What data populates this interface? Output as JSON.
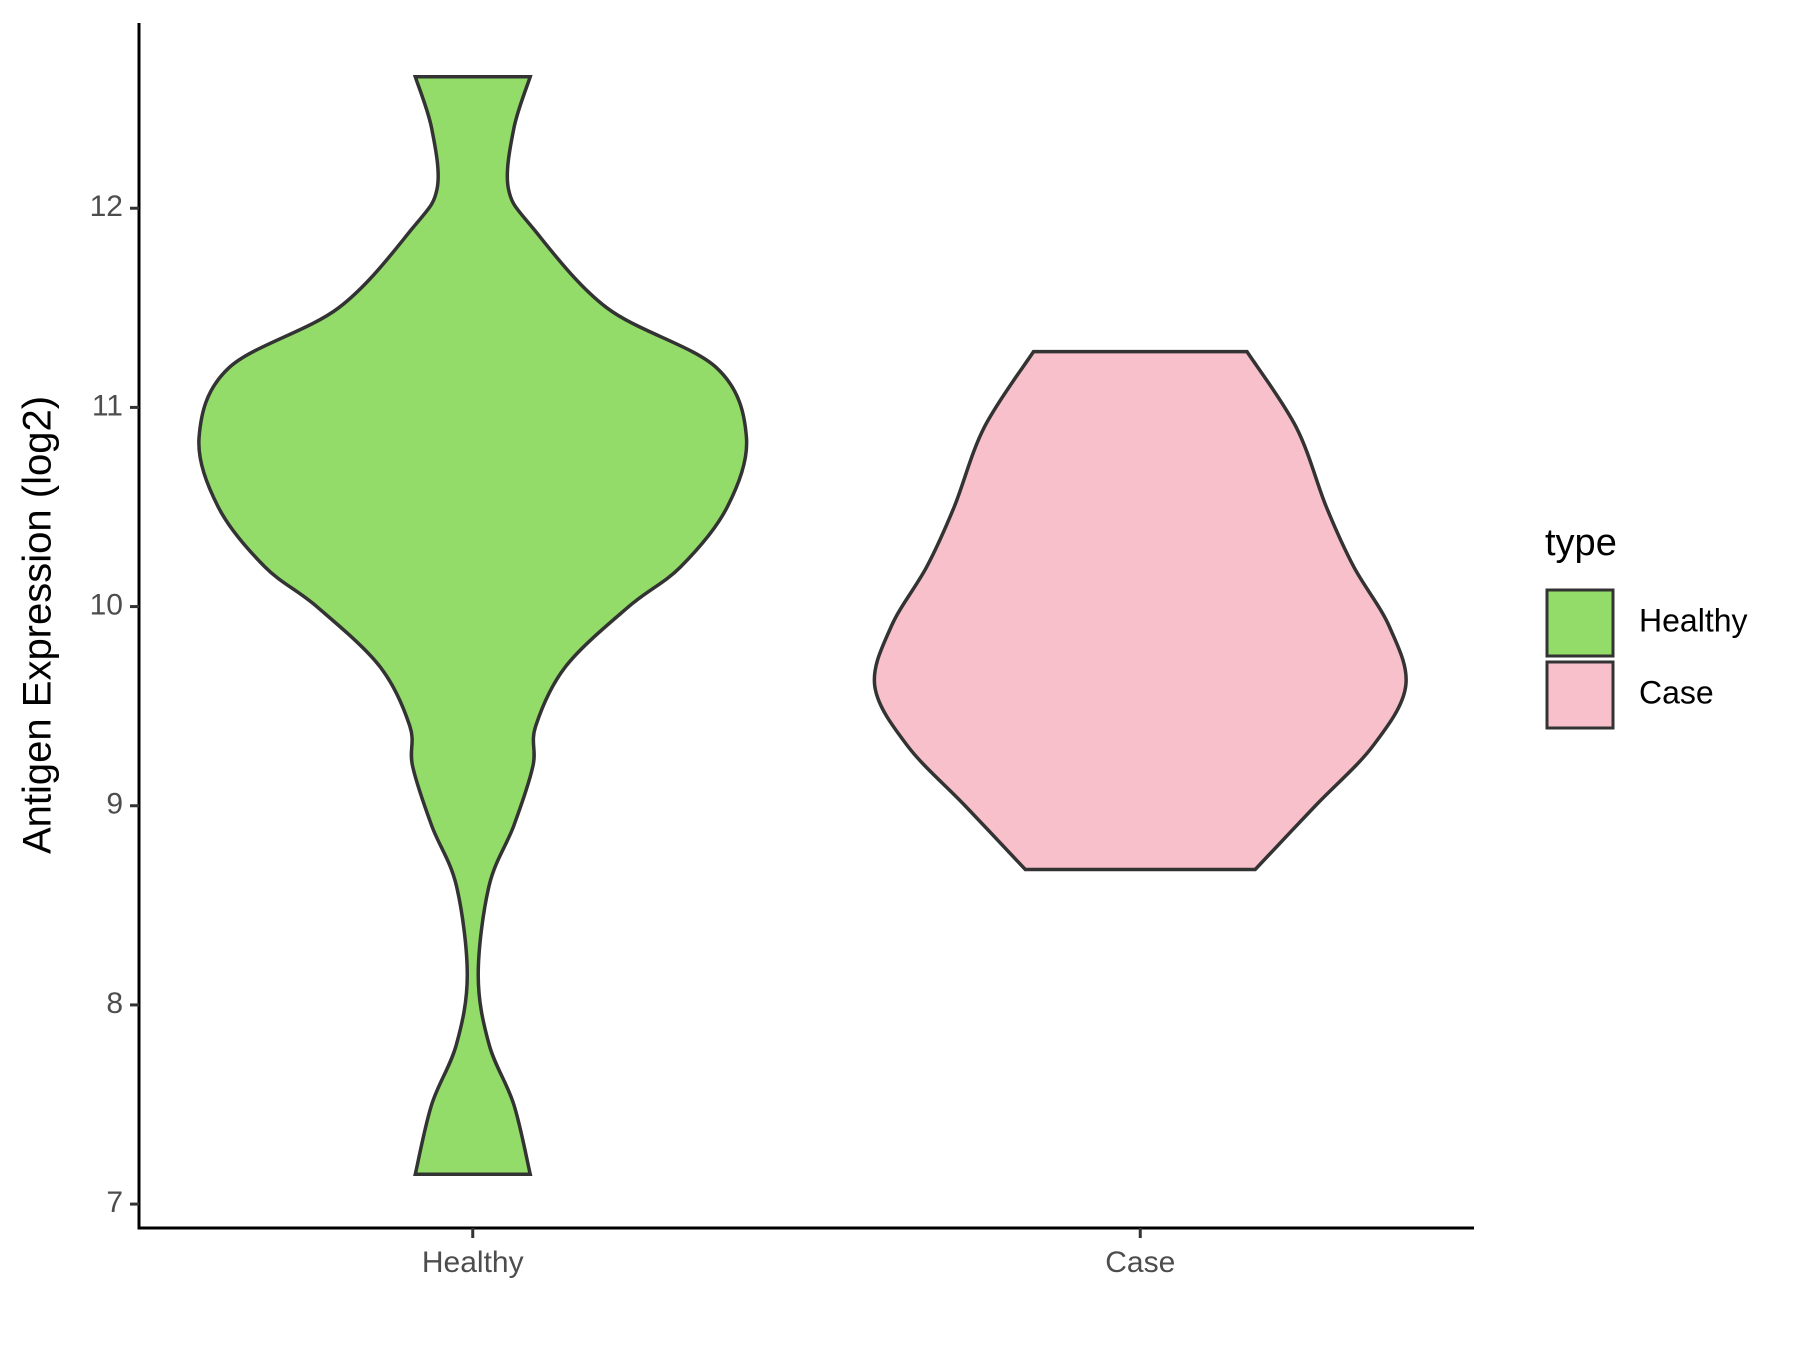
{
  "chart_data": {
    "type": "violin",
    "y_label": "Antigen Expression (log2)",
    "categories": [
      "Healthy",
      "Case"
    ],
    "legend_title": "type",
    "legend_position": "right",
    "series": [
      {
        "name": "Healthy",
        "color": "#93dc6a",
        "y": [
          12.66,
          12.4,
          12.1,
          11.9,
          11.5,
          11.2,
          10.85,
          10.5,
          10.2,
          10.0,
          9.7,
          9.4,
          9.2,
          8.9,
          8.6,
          8.15,
          7.8,
          7.5,
          7.15
        ],
        "width": [
          0.21,
          0.15,
          0.13,
          0.22,
          0.49,
          0.89,
          1.0,
          0.93,
          0.76,
          0.57,
          0.34,
          0.23,
          0.22,
          0.15,
          0.06,
          0.02,
          0.06,
          0.15,
          0.21
        ]
      },
      {
        "name": "Case",
        "color": "#f8c0cb",
        "y": [
          11.28,
          10.9,
          10.5,
          10.2,
          9.9,
          9.6,
          9.3,
          9.0,
          8.68
        ],
        "width": [
          0.39,
          0.57,
          0.68,
          0.78,
          0.91,
          0.97,
          0.85,
          0.64,
          0.42
        ]
      }
    ],
    "ylim": [
      6.88,
      12.93
    ],
    "yticks": [
      7,
      8,
      9,
      10,
      11,
      12
    ],
    "grid": false
  }
}
